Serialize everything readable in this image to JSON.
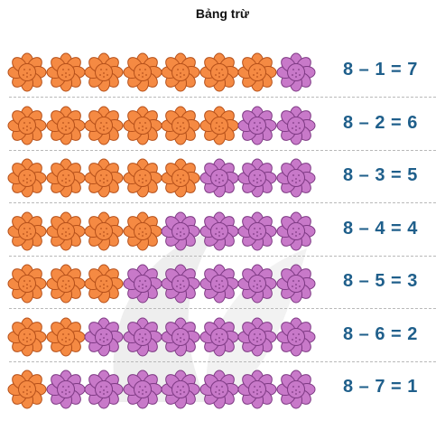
{
  "title": "Bảng trừ",
  "colors": {
    "orange": "#f58a43",
    "purple": "#c879c9",
    "equation": "#1f5f8b"
  },
  "total_flowers": 8,
  "rows": [
    {
      "minus": 1,
      "text": "8 – 1 = 7"
    },
    {
      "minus": 2,
      "text": "8 – 2 = 6"
    },
    {
      "minus": 3,
      "text": "8 – 3 = 5"
    },
    {
      "minus": 4,
      "text": "8 – 4 = 4"
    },
    {
      "minus": 5,
      "text": "8 – 5 = 3"
    },
    {
      "minus": 6,
      "text": "8 – 6 = 2"
    },
    {
      "minus": 7,
      "text": "8 – 7 = 1"
    }
  ]
}
